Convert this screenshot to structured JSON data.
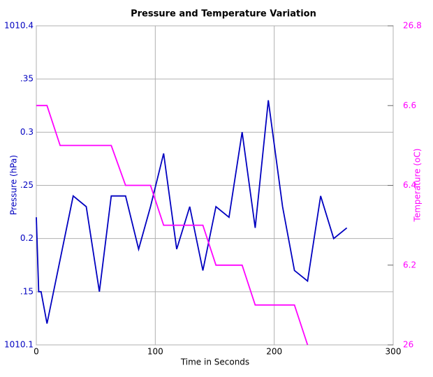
{
  "chart_data": {
    "type": "line",
    "title": "Pressure and Temperature Variation",
    "x_label": "Time in Seconds",
    "y_label": "Pressure (hPa)",
    "y2_label": "Temperature (oC)",
    "xlim": [
      0,
      300
    ],
    "xticks": [
      0,
      100,
      200,
      300
    ],
    "ylim": [
      1010.1,
      1010.4
    ],
    "yticks": [
      1010.1,
      {
        "value": 1010.15,
        "label": ".15"
      },
      {
        "value": 1010.2,
        "label": "0.2"
      },
      {
        "value": 1010.25,
        "label": ".25"
      },
      {
        "value": 1010.3,
        "label": "0.3"
      },
      {
        "value": 1010.35,
        "label": ".35"
      },
      1010.4
    ],
    "y2lim": [
      26,
      26.8
    ],
    "y2ticks": [
      26,
      {
        "value": 26.2,
        "label": "6.2"
      },
      {
        "value": 26.4,
        "label": "6.4"
      },
      {
        "value": 26.6,
        "label": "6.6"
      },
      26.8
    ],
    "grid": true,
    "series": [
      {
        "name": "Pressure",
        "color": "#0000c0",
        "x": [
          0,
          2,
          4,
          9,
          31,
          42,
          53,
          63,
          75,
          86,
          96,
          107,
          118,
          129,
          140,
          151,
          162,
          173,
          184,
          195,
          207,
          217,
          228,
          239,
          250,
          261
        ],
        "values": [
          1010.22,
          1010.15,
          1010.15,
          1010.12,
          1010.24,
          1010.23,
          1010.15,
          1010.24,
          1010.24,
          1010.19,
          1010.23,
          1010.28,
          1010.19,
          1010.23,
          1010.17,
          1010.23,
          1010.22,
          1010.3,
          1010.21,
          1010.33,
          1010.23,
          1010.17,
          1010.16,
          1010.24,
          1010.2,
          1010.21
        ]
      },
      {
        "name": "Temperature",
        "color": "#ff00ff",
        "axis": "y2",
        "x": [
          0,
          9,
          20,
          63,
          75,
          96,
          107,
          140,
          151,
          173,
          184,
          217,
          228
        ],
        "values": [
          26.6,
          26.6,
          26.5,
          26.5,
          26.4,
          26.4,
          26.3,
          26.3,
          26.2,
          26.2,
          26.1,
          26.1,
          26.0
        ]
      }
    ]
  }
}
